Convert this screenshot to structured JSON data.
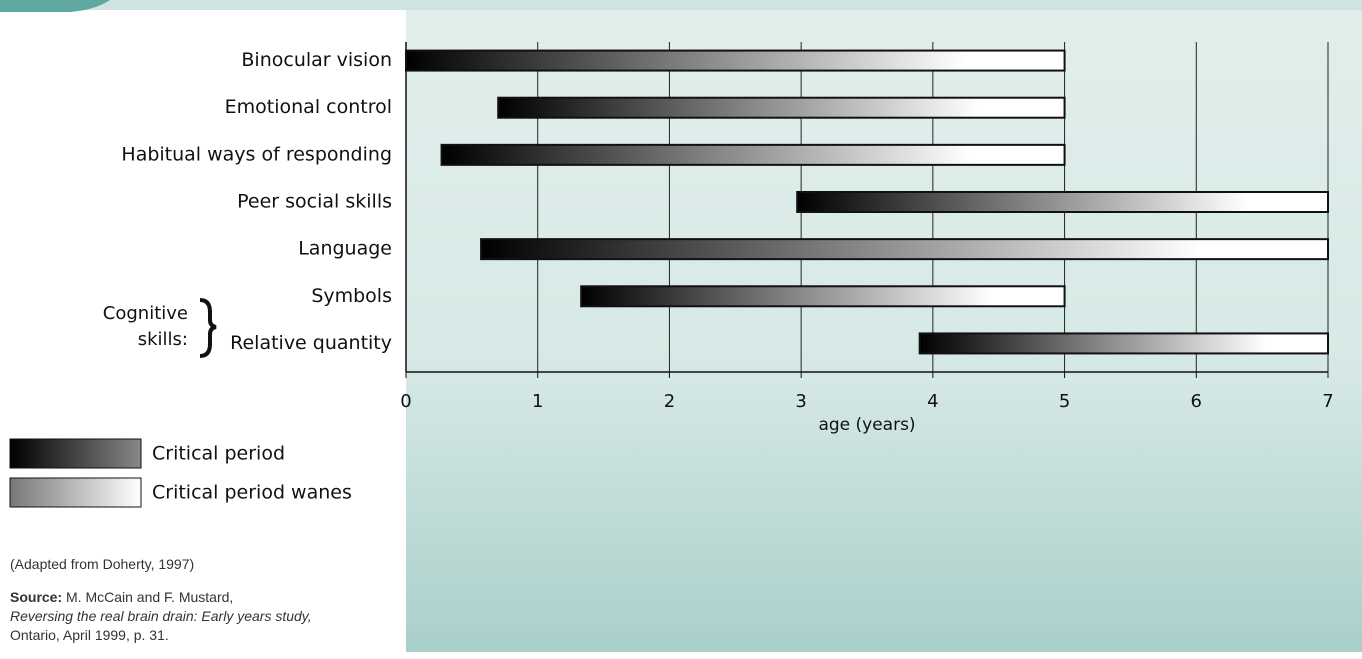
{
  "chart_data": {
    "type": "range-bar",
    "categories": [
      "Binocular vision",
      "Emotional control",
      "Habitual ways of responding",
      "Peer social skills",
      "Language",
      "Symbols",
      "Relative quantity"
    ],
    "starts": [
      0,
      0.7,
      0.27,
      2.97,
      0.57,
      1.33,
      3.9
    ],
    "ends": [
      5,
      5,
      5,
      7,
      7,
      5,
      7
    ],
    "xlim": [
      0,
      7
    ],
    "xticks": [
      0,
      1,
      2,
      3,
      4,
      5,
      6,
      7
    ],
    "xlabel": "age (years)",
    "group_label": [
      "Cognitive",
      "skills:"
    ],
    "legend": [
      "Critical period",
      "Critical period wanes"
    ],
    "grid": true
  },
  "notes": {
    "adapted": "(Adapted from Doherty, 1997)",
    "source_label": "Source:",
    "source_authors": " M. McCain and F. Mustard,",
    "source_title": "Reversing the real brain drain: Early years study,",
    "source_rest": " Ontario, April 1999, p. 31."
  }
}
